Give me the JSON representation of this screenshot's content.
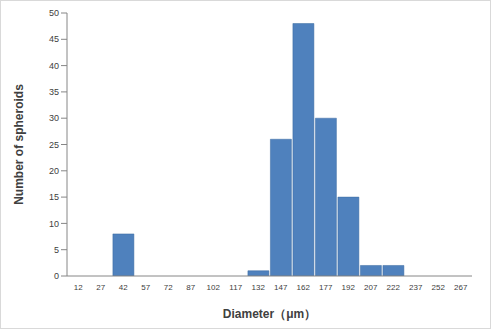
{
  "chart_data": {
    "type": "bar",
    "x_label": "Diameter（μm）",
    "y_label": "Number of spheroids",
    "categories": [
      "12",
      "27",
      "42",
      "57",
      "72",
      "87",
      "102",
      "117",
      "132",
      "147",
      "162",
      "177",
      "192",
      "207",
      "222",
      "237",
      "252",
      "267"
    ],
    "values": [
      0,
      0,
      8,
      0,
      0,
      0,
      0,
      0,
      1,
      26,
      48,
      30,
      15,
      2,
      2,
      0,
      0,
      0
    ],
    "color": "#4f81bd",
    "ylim": [
      0,
      50
    ],
    "yticks": [
      0,
      5,
      10,
      15,
      20,
      25,
      30,
      35,
      40,
      45,
      50
    ],
    "grid": false
  }
}
